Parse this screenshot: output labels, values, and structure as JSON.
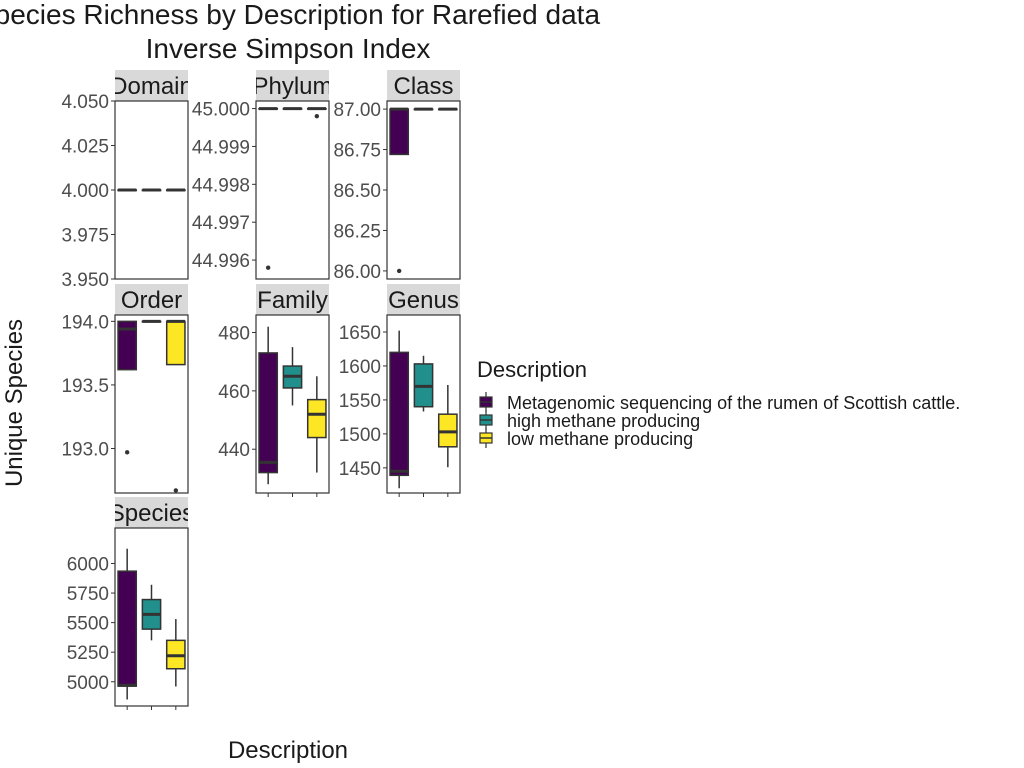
{
  "chart_data": {
    "type": "boxplot",
    "title": "Species Richness by Description for Rarefied data",
    "subtitle": "Inverse Simpson Index",
    "xlabel": "Description",
    "ylabel": "Unique Species",
    "legend": {
      "title": "Description",
      "placement": "right",
      "entries": [
        {
          "name": "Metagenomic sequencing of the rumen of Scottish cattle.",
          "color": "#440154"
        },
        {
          "name": "high methane producing",
          "color": "#21908C"
        },
        {
          "name": "low methane producing",
          "color": "#FDE725"
        }
      ]
    },
    "grid": false,
    "panels": [
      {
        "name": "Domain",
        "ylim": [
          3.95,
          4.05
        ],
        "ticks": [
          3.95,
          3.975,
          4.0,
          4.025,
          4.05
        ],
        "tick_labels": [
          "3.950",
          "3.975",
          "4.000",
          "4.025",
          "4.050"
        ],
        "boxes": [
          {
            "group": "Metagenomic sequencing of the rumen of Scottish cattle.",
            "q1": 4.0,
            "median": 4.0,
            "q3": 4.0,
            "lower": 4.0,
            "upper": 4.0,
            "outliers": []
          },
          {
            "group": "high methane producing",
            "q1": 4.0,
            "median": 4.0,
            "q3": 4.0,
            "lower": 4.0,
            "upper": 4.0,
            "outliers": []
          },
          {
            "group": "low methane producing",
            "q1": 4.0,
            "median": 4.0,
            "q3": 4.0,
            "lower": 4.0,
            "upper": 4.0,
            "outliers": []
          }
        ]
      },
      {
        "name": "Phylum",
        "ylim": [
          44.9955,
          45.0002
        ],
        "ticks": [
          44.996,
          44.997,
          44.998,
          44.999,
          45.0
        ],
        "tick_labels": [
          "44.996",
          "44.997",
          "44.998",
          "44.999",
          "45.000"
        ],
        "boxes": [
          {
            "group": "Metagenomic sequencing of the rumen of Scottish cattle.",
            "q1": 45.0,
            "median": 45.0,
            "q3": 45.0,
            "lower": 45.0,
            "upper": 45.0,
            "outliers": [
              44.9958
            ]
          },
          {
            "group": "high methane producing",
            "q1": 45.0,
            "median": 45.0,
            "q3": 45.0,
            "lower": 45.0,
            "upper": 45.0,
            "outliers": []
          },
          {
            "group": "low methane producing",
            "q1": 45.0,
            "median": 45.0,
            "q3": 45.0,
            "lower": 45.0,
            "upper": 45.0,
            "outliers": [
              44.9998
            ]
          }
        ]
      },
      {
        "name": "Class",
        "ylim": [
          85.95,
          87.05
        ],
        "ticks": [
          86.0,
          86.25,
          86.5,
          86.75,
          87.0
        ],
        "tick_labels": [
          "86.00",
          "86.25",
          "86.50",
          "86.75",
          "87.00"
        ],
        "boxes": [
          {
            "group": "Metagenomic sequencing of the rumen of Scottish cattle.",
            "q1": 86.72,
            "median": 87.0,
            "q3": 87.0,
            "lower": 86.72,
            "upper": 87.0,
            "outliers": [
              86.0
            ]
          },
          {
            "group": "high methane producing",
            "q1": 87.0,
            "median": 87.0,
            "q3": 87.0,
            "lower": 87.0,
            "upper": 87.0,
            "outliers": []
          },
          {
            "group": "low methane producing",
            "q1": 87.0,
            "median": 87.0,
            "q3": 87.0,
            "lower": 87.0,
            "upper": 87.0,
            "outliers": []
          }
        ]
      },
      {
        "name": "Order",
        "ylim": [
          192.65,
          194.05
        ],
        "ticks": [
          193.0,
          193.5,
          194.0
        ],
        "tick_labels": [
          "193.0",
          "193.5",
          "194.0"
        ],
        "boxes": [
          {
            "group": "Metagenomic sequencing of the rumen of Scottish cattle.",
            "q1": 193.62,
            "median": 193.94,
            "q3": 194.0,
            "lower": 193.62,
            "upper": 194.0,
            "outliers": [
              192.97
            ]
          },
          {
            "group": "high methane producing",
            "q1": 194.0,
            "median": 194.0,
            "q3": 194.0,
            "lower": 194.0,
            "upper": 194.0,
            "outliers": []
          },
          {
            "group": "low methane producing",
            "q1": 193.66,
            "median": 194.0,
            "q3": 194.0,
            "lower": 193.66,
            "upper": 194.0,
            "outliers": [
              192.67
            ]
          }
        ]
      },
      {
        "name": "Family",
        "ylim": [
          425,
          486
        ],
        "ticks": [
          440,
          460,
          480
        ],
        "tick_labels": [
          "440",
          "460",
          "480"
        ],
        "boxes": [
          {
            "group": "Metagenomic sequencing of the rumen of Scottish cattle.",
            "q1": 432,
            "median": 435.5,
            "q3": 473,
            "lower": 428,
            "upper": 482,
            "outliers": []
          },
          {
            "group": "high methane producing",
            "q1": 461,
            "median": 465,
            "q3": 468.5,
            "lower": 455,
            "upper": 475,
            "outliers": []
          },
          {
            "group": "low methane producing",
            "q1": 444,
            "median": 452,
            "q3": 457,
            "lower": 432,
            "upper": 465,
            "outliers": []
          }
        ]
      },
      {
        "name": "Genus",
        "ylim": [
          1413,
          1675
        ],
        "ticks": [
          1450,
          1500,
          1550,
          1600,
          1650
        ],
        "tick_labels": [
          "1450",
          "1500",
          "1550",
          "1600",
          "1650"
        ],
        "boxes": [
          {
            "group": "Metagenomic sequencing of the rumen of Scottish cattle.",
            "q1": 1439,
            "median": 1445,
            "q3": 1620,
            "lower": 1420,
            "upper": 1652,
            "outliers": []
          },
          {
            "group": "high methane producing",
            "q1": 1540,
            "median": 1570,
            "q3": 1603,
            "lower": 1533,
            "upper": 1615,
            "outliers": []
          },
          {
            "group": "low methane producing",
            "q1": 1481,
            "median": 1503,
            "q3": 1529,
            "lower": 1451,
            "upper": 1572,
            "outliers": []
          }
        ]
      },
      {
        "name": "Species",
        "ylim": [
          4795,
          6300
        ],
        "ticks": [
          5000,
          5250,
          5500,
          5750,
          6000
        ],
        "tick_labels": [
          "5000",
          "5250",
          "5500",
          "5750",
          "6000"
        ],
        "boxes": [
          {
            "group": "Metagenomic sequencing of the rumen of Scottish cattle.",
            "q1": 4963,
            "median": 4970,
            "q3": 5935,
            "lower": 4850,
            "upper": 6125,
            "outliers": []
          },
          {
            "group": "high methane producing",
            "q1": 5445,
            "median": 5570,
            "q3": 5695,
            "lower": 5350,
            "upper": 5820,
            "outliers": []
          },
          {
            "group": "low methane producing",
            "q1": 5110,
            "median": 5220,
            "q3": 5350,
            "lower": 4960,
            "upper": 5530,
            "outliers": []
          }
        ]
      }
    ]
  }
}
